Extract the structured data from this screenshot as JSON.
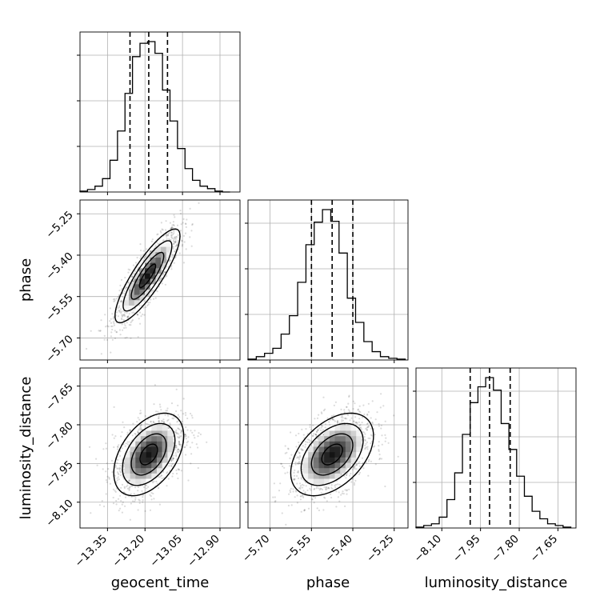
{
  "chart_data": {
    "type": "corner",
    "parameters": [
      "geocent_time",
      "phase",
      "luminosity_distance"
    ],
    "axis_labels": [
      "geocent_time",
      "phase",
      "luminosity_distance"
    ],
    "ranges": [
      [
        -13.46,
        -12.82
      ],
      [
        -5.78,
        -5.2
      ],
      [
        -8.2,
        -7.58
      ]
    ],
    "ticks": [
      [
        "−13.35",
        "−13.20",
        "−13.05",
        "−12.90"
      ],
      [
        "−5.70",
        "−5.55",
        "−5.40",
        "−5.25"
      ],
      [
        "−8.10",
        "−7.95",
        "−7.80",
        "−7.65"
      ]
    ],
    "tick_values": [
      [
        -13.35,
        -13.2,
        -13.05,
        -12.9
      ],
      [
        -5.7,
        -5.55,
        -5.4,
        -5.25
      ],
      [
        -8.1,
        -7.95,
        -7.8,
        -7.65
      ]
    ],
    "quantiles": [
      [
        -13.26,
        -13.185,
        -13.11
      ],
      [
        -5.55,
        -5.475,
        -5.4
      ],
      [
        -7.99,
        -7.915,
        -7.835
      ]
    ],
    "histograms": [
      {
        "bin_edges": [
          -13.46,
          -13.43,
          -13.4,
          -13.37,
          -13.34,
          -13.31,
          -13.28,
          -13.25,
          -13.22,
          -13.19,
          -13.16,
          -13.13,
          -13.1,
          -13.07,
          -13.04,
          -13.01,
          -12.98,
          -12.95,
          -12.92,
          -12.89,
          -12.86
        ],
        "counts": [
          1,
          3,
          7,
          16,
          38,
          73,
          118,
          162,
          178,
          180,
          166,
          122,
          85,
          52,
          28,
          14,
          7,
          4,
          1,
          0
        ]
      },
      {
        "bin_edges": [
          -5.78,
          -5.75,
          -5.72,
          -5.69,
          -5.66,
          -5.63,
          -5.6,
          -5.57,
          -5.54,
          -5.51,
          -5.48,
          -5.45,
          -5.42,
          -5.39,
          -5.36,
          -5.33,
          -5.3,
          -5.27,
          -5.24,
          -5.21
        ],
        "counts": [
          1,
          4,
          8,
          14,
          31,
          53,
          93,
          138,
          165,
          180,
          166,
          128,
          74,
          45,
          22,
          10,
          4,
          2,
          1
        ]
      },
      {
        "bin_edges": [
          -8.2,
          -8.17,
          -8.14,
          -8.11,
          -8.08,
          -8.05,
          -8.02,
          -7.99,
          -7.96,
          -7.93,
          -7.9,
          -7.87,
          -7.84,
          -7.81,
          -7.78,
          -7.75,
          -7.72,
          -7.69,
          -7.66,
          -7.63,
          -7.6
        ],
        "counts": [
          1,
          3,
          5,
          13,
          34,
          66,
          112,
          150,
          169,
          180,
          165,
          125,
          94,
          62,
          38,
          20,
          11,
          5,
          3,
          1
        ]
      }
    ],
    "pairs": [
      {
        "x": 0,
        "y": 1,
        "center": [
          -13.19,
          -5.475
        ],
        "sigma": [
          0.065,
          0.085
        ],
        "rho": 0.85
      },
      {
        "x": 0,
        "y": 2,
        "center": [
          -13.185,
          -7.915
        ],
        "sigma": [
          0.07,
          0.08
        ],
        "rho": 0.45
      },
      {
        "x": 1,
        "y": 2,
        "center": [
          -5.475,
          -7.915
        ],
        "sigma": [
          0.075,
          0.08
        ],
        "rho": 0.45
      }
    ],
    "grid": true
  }
}
